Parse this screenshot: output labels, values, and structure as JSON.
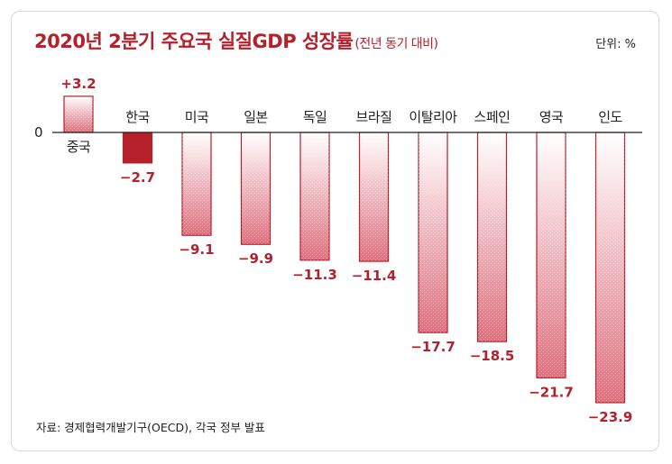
{
  "header": {
    "title": "2020년 2분기 주요국 실질GDP 성장률",
    "subtitle": "(전년 동기 대비)",
    "unit": "단위: %"
  },
  "footer": {
    "source": "자료: 경제협력개발기구(OECD), 각국 정부 발표"
  },
  "colors": {
    "accent": "#b5202b",
    "highlight_bar": "#b5202b",
    "bar_top": "#ffffff",
    "bar_bottom": "#e0707e"
  },
  "chart_data": {
    "type": "bar",
    "title": "2020년 2분기 주요국 실질GDP 성장률",
    "subtitle": "(전년 동기 대비)",
    "unit": "%",
    "zero_label": "0",
    "highlight": "한국",
    "categories": [
      "중국",
      "한국",
      "미국",
      "일본",
      "독일",
      "브라질",
      "이탈리아",
      "스페인",
      "영국",
      "인도"
    ],
    "values": [
      3.2,
      -2.7,
      -9.1,
      -9.9,
      -11.3,
      -11.4,
      -17.7,
      -18.5,
      -21.7,
      -23.9
    ],
    "value_labels": [
      "+3.2",
      "−2.7",
      "−9.1",
      "−9.9",
      "−11.3",
      "−11.4",
      "−17.7",
      "−18.5",
      "−21.7",
      "−23.9"
    ],
    "grid": false,
    "legend": "none"
  }
}
